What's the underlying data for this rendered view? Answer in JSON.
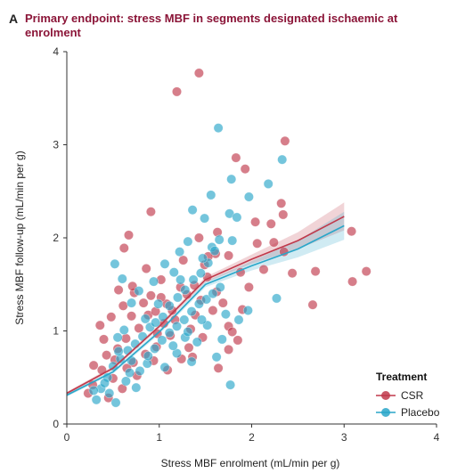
{
  "panel_letter": "A",
  "title_line1": "Primary endpoint: stress MBF in segments designated ischaemic at",
  "title_line2": "enrolment",
  "chart_data": {
    "type": "scatter",
    "title": "Primary endpoint: stress MBF in segments designated ischaemic at enrolment",
    "xlabel": "Stress MBF enrolment (mL/min per g)",
    "ylabel": "Stress MBF follow-up (mL/min per g)",
    "xlim": [
      0,
      4
    ],
    "ylim": [
      0,
      4
    ],
    "xticks": [
      "0",
      "1",
      "2",
      "3",
      "4"
    ],
    "yticks": [
      "0",
      "1",
      "2",
      "3",
      "4"
    ],
    "grid": false,
    "legend": {
      "title": "Treatment",
      "position": "bottom-right"
    },
    "series": [
      {
        "name": "CSR",
        "color": "#c0394b",
        "points": [
          [
            1.43,
            3.77
          ],
          [
            1.19,
            3.57
          ],
          [
            2.36,
            3.04
          ],
          [
            1.83,
            2.86
          ],
          [
            1.93,
            2.74
          ],
          [
            2.32,
            2.37
          ],
          [
            2.34,
            2.25
          ],
          [
            0.91,
            2.28
          ],
          [
            1.63,
            2.06
          ],
          [
            1.43,
            2.0
          ],
          [
            2.21,
            2.15
          ],
          [
            2.04,
            2.17
          ],
          [
            2.06,
            1.94
          ],
          [
            2.24,
            1.95
          ],
          [
            2.69,
            1.64
          ],
          [
            3.08,
            2.07
          ],
          [
            3.24,
            1.64
          ],
          [
            3.09,
            1.53
          ],
          [
            2.66,
            1.28
          ],
          [
            2.44,
            1.62
          ],
          [
            2.13,
            1.66
          ],
          [
            2.35,
            1.85
          ],
          [
            1.88,
            1.63
          ],
          [
            1.75,
            1.81
          ],
          [
            1.61,
            1.83
          ],
          [
            1.49,
            1.71
          ],
          [
            0.67,
            2.03
          ],
          [
            0.62,
            1.89
          ],
          [
            0.86,
            1.67
          ],
          [
            1.02,
            1.55
          ],
          [
            1.23,
            1.47
          ],
          [
            1.08,
            1.29
          ],
          [
            0.73,
            1.41
          ],
          [
            0.61,
            1.27
          ],
          [
            0.48,
            1.15
          ],
          [
            0.36,
            1.06
          ],
          [
            0.4,
            0.91
          ],
          [
            0.29,
            0.63
          ],
          [
            0.38,
            0.58
          ],
          [
            0.52,
            0.69
          ],
          [
            0.55,
            0.81
          ],
          [
            0.64,
            0.92
          ],
          [
            0.78,
            1.03
          ],
          [
            0.88,
            1.17
          ],
          [
            0.96,
            1.21
          ],
          [
            1.05,
            1.08
          ],
          [
            1.12,
            0.95
          ],
          [
            0.97,
            0.83
          ],
          [
            0.85,
            0.75
          ],
          [
            0.72,
            0.66
          ],
          [
            0.5,
            0.49
          ],
          [
            0.28,
            0.42
          ],
          [
            0.23,
            0.33
          ],
          [
            0.45,
            0.28
          ],
          [
            0.6,
            0.38
          ],
          [
            1.3,
            1.39
          ],
          [
            1.38,
            1.49
          ],
          [
            1.45,
            1.33
          ],
          [
            1.52,
            1.58
          ],
          [
            1.62,
            1.42
          ],
          [
            1.69,
            1.3
          ],
          [
            1.75,
            1.05
          ],
          [
            1.79,
            0.99
          ],
          [
            1.85,
            0.9
          ],
          [
            1.75,
            0.8
          ],
          [
            1.64,
            0.6
          ],
          [
            1.32,
            0.82
          ],
          [
            1.24,
            0.7
          ],
          [
            1.09,
            0.58
          ],
          [
            1.17,
            1.12
          ],
          [
            0.83,
            1.3
          ],
          [
            0.71,
            1.48
          ],
          [
            0.56,
            1.44
          ],
          [
            1.53,
            1.8
          ],
          [
            1.26,
            1.76
          ],
          [
            0.91,
            1.38
          ],
          [
            0.76,
            0.52
          ],
          [
            0.65,
            0.6
          ],
          [
            0.98,
            0.97
          ],
          [
            1.34,
            1.02
          ],
          [
            1.02,
            1.36
          ],
          [
            1.14,
            1.22
          ],
          [
            1.39,
            1.17
          ],
          [
            1.58,
            1.22
          ],
          [
            1.47,
            0.93
          ],
          [
            1.36,
            0.72
          ],
          [
            0.94,
            0.68
          ],
          [
            0.7,
            1.16
          ],
          [
            0.43,
            0.74
          ],
          [
            1.9,
            1.23
          ],
          [
            1.97,
            1.47
          ]
        ]
      },
      {
        "name": "Placebo",
        "color": "#29a6c9",
        "points": [
          [
            1.64,
            3.18
          ],
          [
            2.33,
            2.84
          ],
          [
            1.78,
            2.63
          ],
          [
            1.56,
            2.46
          ],
          [
            2.18,
            2.58
          ],
          [
            1.49,
            2.21
          ],
          [
            1.36,
            2.3
          ],
          [
            1.76,
            2.26
          ],
          [
            1.84,
            2.22
          ],
          [
            1.97,
            2.44
          ],
          [
            1.65,
            1.98
          ],
          [
            1.31,
            1.96
          ],
          [
            1.57,
            1.9
          ],
          [
            1.79,
            1.97
          ],
          [
            2.27,
            1.35
          ],
          [
            1.96,
            1.22
          ],
          [
            1.86,
            1.12
          ],
          [
            1.77,
            0.42
          ],
          [
            1.19,
            0.76
          ],
          [
            1.35,
            0.67
          ],
          [
            1.62,
            0.72
          ],
          [
            0.53,
            0.23
          ],
          [
            0.32,
            0.26
          ],
          [
            0.46,
            0.33
          ],
          [
            0.37,
            0.38
          ],
          [
            0.44,
            0.5
          ],
          [
            0.5,
            0.62
          ],
          [
            0.58,
            0.7
          ],
          [
            0.66,
            0.79
          ],
          [
            0.74,
            0.86
          ],
          [
            0.82,
            0.94
          ],
          [
            0.9,
            1.04
          ],
          [
            0.96,
            1.09
          ],
          [
            1.04,
            1.15
          ],
          [
            1.11,
            1.27
          ],
          [
            1.2,
            1.36
          ],
          [
            1.28,
            1.44
          ],
          [
            1.37,
            1.55
          ],
          [
            1.45,
            1.62
          ],
          [
            1.53,
            1.73
          ],
          [
            1.6,
            1.86
          ],
          [
            0.52,
            1.72
          ],
          [
            0.6,
            1.56
          ],
          [
            0.7,
            1.3
          ],
          [
            0.78,
            1.43
          ],
          [
            0.94,
            1.53
          ],
          [
            1.06,
            1.72
          ],
          [
            1.16,
            1.63
          ],
          [
            1.23,
            1.55
          ],
          [
            0.55,
            0.93
          ],
          [
            0.62,
            1.01
          ],
          [
            0.7,
            0.68
          ],
          [
            0.79,
            0.57
          ],
          [
            0.87,
            0.65
          ],
          [
            0.95,
            0.81
          ],
          [
            1.03,
            0.9
          ],
          [
            1.11,
            0.98
          ],
          [
            1.19,
            1.05
          ],
          [
            1.27,
            1.12
          ],
          [
            1.35,
            1.21
          ],
          [
            1.43,
            1.29
          ],
          [
            1.51,
            1.34
          ],
          [
            1.58,
            1.4
          ],
          [
            1.66,
            1.47
          ],
          [
            1.72,
            1.18
          ],
          [
            1.68,
            0.91
          ],
          [
            1.52,
            1.06
          ],
          [
            1.41,
            0.88
          ],
          [
            1.28,
            0.93
          ],
          [
            0.75,
            0.39
          ],
          [
            0.64,
            0.46
          ],
          [
            0.41,
            0.44
          ],
          [
            0.29,
            0.36
          ],
          [
            1.47,
            1.78
          ],
          [
            1.22,
            1.85
          ],
          [
            0.99,
            1.29
          ],
          [
            0.85,
            1.13
          ],
          [
            1.15,
            0.84
          ],
          [
            1.31,
            0.99
          ],
          [
            1.46,
            1.12
          ],
          [
            0.68,
            0.55
          ],
          [
            0.88,
            0.73
          ],
          [
            1.06,
            0.61
          ],
          [
            0.56,
            0.78
          ]
        ]
      }
    ],
    "fit_lines": [
      {
        "name": "CSR",
        "x": [
          0,
          0.5,
          1.0,
          1.5,
          2.0,
          2.5,
          3.0
        ],
        "y": [
          0.33,
          0.6,
          1.05,
          1.55,
          1.77,
          1.97,
          2.23
        ],
        "ci_width": [
          0.03,
          0.04,
          0.05,
          0.06,
          0.1,
          0.18,
          0.3
        ]
      },
      {
        "name": "Placebo",
        "x": [
          0,
          0.5,
          1.0,
          1.5,
          2.0,
          2.5,
          3.0
        ],
        "y": [
          0.31,
          0.56,
          0.99,
          1.5,
          1.7,
          1.88,
          2.13
        ],
        "ci_width": [
          0.03,
          0.04,
          0.05,
          0.06,
          0.1,
          0.18,
          0.3
        ]
      }
    ]
  }
}
